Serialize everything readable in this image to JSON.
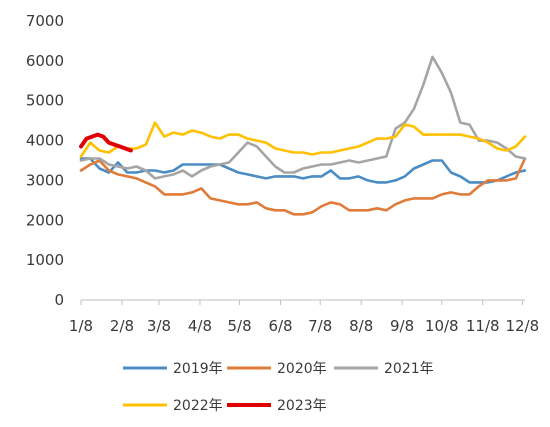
{
  "chart_data": {
    "type": "line",
    "title": "",
    "xlabel": "",
    "ylabel": "",
    "ylim": [
      0,
      7000
    ],
    "yticks": [
      "0",
      "1000",
      "2000",
      "3000",
      "4000",
      "5000",
      "6000",
      "7000"
    ],
    "xlim": [
      0,
      48
    ],
    "xticks": [
      {
        "label": "1/8",
        "x": 0
      },
      {
        "label": "2/8",
        "x": 4.43
      },
      {
        "label": "3/8",
        "x": 8.43
      },
      {
        "label": "4/8",
        "x": 12.86
      },
      {
        "label": "5/8",
        "x": 17.14
      },
      {
        "label": "6/8",
        "x": 21.57
      },
      {
        "label": "7/8",
        "x": 25.86
      },
      {
        "label": "8/8",
        "x": 30.29
      },
      {
        "label": "9/8",
        "x": 34.71
      },
      {
        "label": "10/8",
        "x": 39.0
      },
      {
        "label": "11/8",
        "x": 43.43
      },
      {
        "label": "12/8",
        "x": 47.71
      }
    ],
    "grid": false,
    "legend_position": "bottom",
    "series": [
      {
        "name": "2019年",
        "color": "#4A8CC4",
        "x": [
          0,
          1,
          2,
          3,
          4,
          5,
          6,
          7,
          8,
          9,
          10,
          11,
          12,
          13,
          14,
          15,
          16,
          17,
          18,
          19,
          20,
          21,
          22,
          23,
          24,
          25,
          26,
          27,
          28,
          29,
          30,
          31,
          32,
          33,
          34,
          35,
          36,
          37,
          38,
          39,
          40,
          41,
          42,
          43,
          44,
          45,
          46,
          47,
          48
        ],
        "values": [
          3550,
          3550,
          3300,
          3200,
          3450,
          3200,
          3200,
          3250,
          3250,
          3200,
          3250,
          3400,
          3400,
          3400,
          3400,
          3400,
          3300,
          3200,
          3150,
          3100,
          3050,
          3100,
          3100,
          3100,
          3050,
          3100,
          3100,
          3250,
          3050,
          3050,
          3100,
          3000,
          2950,
          2950,
          3000,
          3100,
          3300,
          3400,
          3500,
          3500,
          3200,
          3100,
          2950,
          2950,
          2950,
          3000,
          3100,
          3200,
          3250
        ]
      },
      {
        "name": "2020年",
        "color": "#E07B39",
        "x": [
          0,
          1,
          2,
          3,
          4,
          5,
          6,
          7,
          8,
          9,
          10,
          11,
          12,
          13,
          14,
          15,
          16,
          17,
          18,
          19,
          20,
          21,
          22,
          23,
          24,
          25,
          26,
          27,
          28,
          29,
          30,
          31,
          32,
          33,
          34,
          35,
          36,
          37,
          38,
          39,
          40,
          41,
          42,
          43,
          44,
          45,
          46,
          47,
          48
        ],
        "values": [
          3250,
          3400,
          3500,
          3250,
          3150,
          3100,
          3050,
          2950,
          2850,
          2650,
          2650,
          2650,
          2700,
          2800,
          2550,
          2500,
          2450,
          2400,
          2400,
          2450,
          2300,
          2250,
          2250,
          2150,
          2150,
          2200,
          2350,
          2450,
          2400,
          2250,
          2250,
          2250,
          2300,
          2250,
          2400,
          2500,
          2550,
          2550,
          2550,
          2650,
          2700,
          2650,
          2650,
          2850,
          3000,
          3000,
          3000,
          3050,
          3550
        ]
      },
      {
        "name": "2021年",
        "color": "#A5A5A5",
        "x": [
          0,
          1,
          2,
          3,
          4,
          5,
          6,
          7,
          8,
          9,
          10,
          11,
          12,
          13,
          14,
          15,
          16,
          17,
          18,
          19,
          20,
          21,
          22,
          23,
          24,
          25,
          26,
          27,
          28,
          29,
          30,
          31,
          32,
          33,
          34,
          35,
          36,
          37,
          38,
          39,
          40,
          41,
          42,
          43,
          44,
          45,
          46,
          47,
          48
        ],
        "values": [
          3500,
          3550,
          3550,
          3400,
          3350,
          3300,
          3350,
          3250,
          3050,
          3100,
          3150,
          3250,
          3100,
          3250,
          3350,
          3400,
          3450,
          3700,
          3950,
          3850,
          3600,
          3350,
          3200,
          3200,
          3300,
          3350,
          3400,
          3400,
          3450,
          3500,
          3450,
          3500,
          3550,
          3600,
          4300,
          4450,
          4800,
          5400,
          6100,
          5700,
          5200,
          4450,
          4400,
          4000,
          4000,
          3950,
          3800,
          3600,
          3550
        ]
      },
      {
        "name": "2022年",
        "color": "#FFC000",
        "x": [
          0,
          1,
          2,
          3,
          4,
          5,
          6,
          7,
          8,
          9,
          10,
          11,
          12,
          13,
          14,
          15,
          16,
          17,
          18,
          19,
          20,
          21,
          22,
          23,
          24,
          25,
          26,
          27,
          28,
          29,
          30,
          31,
          32,
          33,
          34,
          35,
          36,
          37,
          38,
          39,
          40,
          41,
          42,
          43,
          44,
          45,
          46,
          47,
          48
        ],
        "values": [
          3600,
          3950,
          3750,
          3700,
          3850,
          3800,
          3800,
          3900,
          4450,
          4100,
          4200,
          4150,
          4250,
          4200,
          4100,
          4050,
          4150,
          4150,
          4050,
          4000,
          3950,
          3800,
          3750,
          3700,
          3700,
          3650,
          3700,
          3700,
          3750,
          3800,
          3850,
          3950,
          4050,
          4050,
          4100,
          4400,
          4350,
          4150,
          4150,
          4150,
          4150,
          4150,
          4100,
          4050,
          3950,
          3800,
          3750,
          3850,
          4100
        ]
      },
      {
        "name": "2023年",
        "color": "#E00000",
        "x": [
          0,
          0.6,
          1.2,
          1.8,
          2.4,
          3.0,
          3.6,
          4.2,
          4.8,
          5.4
        ],
        "values": [
          3850,
          4050,
          4100,
          4150,
          4100,
          3950,
          3900,
          3850,
          3800,
          3750
        ]
      }
    ]
  }
}
